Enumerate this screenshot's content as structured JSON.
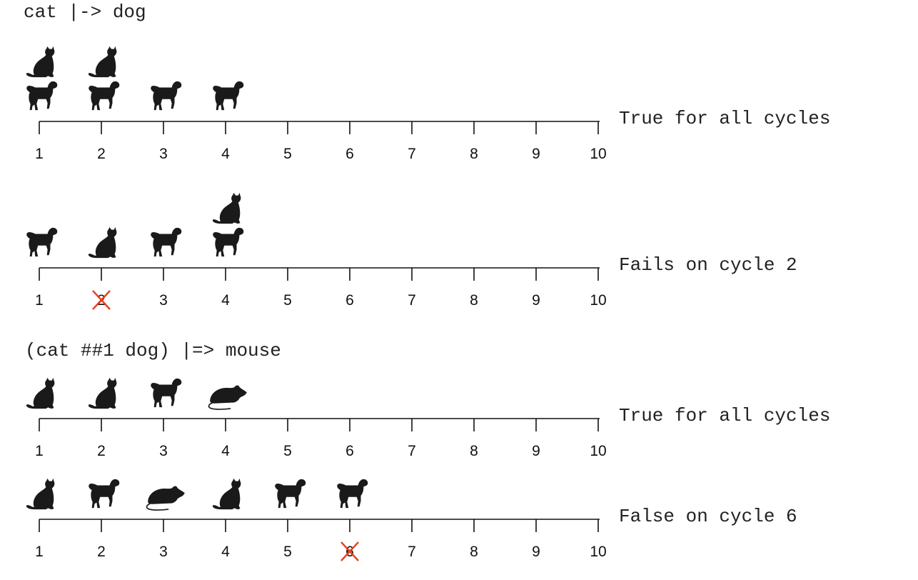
{
  "sections": [
    {
      "title": "cat |-> dog"
    },
    {
      "title": "(cat ##1 dog) |=> mouse"
    }
  ],
  "timelines": [
    {
      "ticks": [
        "1",
        "2",
        "3",
        "4",
        "5",
        "6",
        "7",
        "8",
        "9",
        "10"
      ],
      "result": "True for all cycles",
      "marked_tick": null,
      "animals": [
        {
          "cycle": 1,
          "row": 2,
          "kind": "cat"
        },
        {
          "cycle": 2,
          "row": 2,
          "kind": "cat"
        },
        {
          "cycle": 1,
          "row": 1,
          "kind": "dog"
        },
        {
          "cycle": 2,
          "row": 1,
          "kind": "dog"
        },
        {
          "cycle": 3,
          "row": 1,
          "kind": "dog"
        },
        {
          "cycle": 4,
          "row": 1,
          "kind": "dog"
        }
      ]
    },
    {
      "ticks": [
        "1",
        "2",
        "3",
        "4",
        "5",
        "6",
        "7",
        "8",
        "9",
        "10"
      ],
      "result": "Fails on cycle 2",
      "marked_tick": 2,
      "animals": [
        {
          "cycle": 4,
          "row": 2,
          "kind": "cat"
        },
        {
          "cycle": 1,
          "row": 1,
          "kind": "dog"
        },
        {
          "cycle": 2,
          "row": 1,
          "kind": "cat"
        },
        {
          "cycle": 3,
          "row": 1,
          "kind": "dog"
        },
        {
          "cycle": 4,
          "row": 1,
          "kind": "dog"
        }
      ]
    },
    {
      "ticks": [
        "1",
        "2",
        "3",
        "4",
        "5",
        "6",
        "7",
        "8",
        "9",
        "10"
      ],
      "result": "True for all cycles",
      "marked_tick": null,
      "animals": [
        {
          "cycle": 1,
          "row": 1,
          "kind": "cat"
        },
        {
          "cycle": 2,
          "row": 1,
          "kind": "cat"
        },
        {
          "cycle": 3,
          "row": 1,
          "kind": "dog"
        },
        {
          "cycle": 4,
          "row": 1,
          "kind": "mouse"
        }
      ]
    },
    {
      "ticks": [
        "1",
        "2",
        "3",
        "4",
        "5",
        "6",
        "7",
        "8",
        "9",
        "10"
      ],
      "result": "False on cycle 6",
      "marked_tick": 6,
      "animals": [
        {
          "cycle": 1,
          "row": 1,
          "kind": "cat"
        },
        {
          "cycle": 2,
          "row": 1,
          "kind": "dog"
        },
        {
          "cycle": 3,
          "row": 1,
          "kind": "mouse"
        },
        {
          "cycle": 4,
          "row": 1,
          "kind": "cat"
        },
        {
          "cycle": 5,
          "row": 1,
          "kind": "dog"
        },
        {
          "cycle": 6,
          "row": 1,
          "kind": "dog"
        }
      ]
    }
  ],
  "colors": {
    "axis": "#111111",
    "silhouette": "#1a1a1a",
    "cross": "#e8401c"
  }
}
